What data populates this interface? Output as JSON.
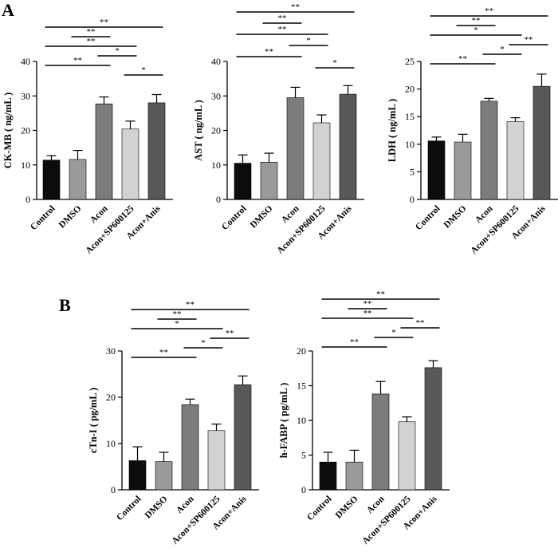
{
  "panels": [
    {
      "id": "A",
      "letter": "A"
    },
    {
      "id": "B",
      "letter": "B"
    }
  ],
  "chart_data": [
    {
      "type": "bar",
      "panel": "A",
      "ylabel": "CK-MB ( ng/mL )",
      "categories": [
        "Control",
        "DMSO",
        "Acon",
        "Acon+SP600125",
        "Acon+Anis"
      ],
      "values": [
        11.4,
        11.6,
        27.7,
        20.4,
        28.0
      ],
      "errors": [
        1.3,
        2.6,
        2.0,
        2.3,
        2.4
      ],
      "bar_colors": [
        "#0c0c0c",
        "#9a9a9a",
        "#7c7c7c",
        "#d2d2d2",
        "#595959"
      ],
      "ylim": [
        0,
        40
      ],
      "yticks": [
        0,
        10,
        20,
        30,
        40
      ],
      "significance": [
        {
          "from": 0,
          "to": 4,
          "label": "**"
        },
        {
          "from": 1,
          "to": 2,
          "label": "**"
        },
        {
          "from": 0,
          "to": 3,
          "label": "**"
        },
        {
          "from": 2,
          "to": 3,
          "label": "*"
        },
        {
          "from": 0,
          "to": 2,
          "label": "**"
        },
        {
          "from": 3,
          "to": 4,
          "label": "*"
        }
      ]
    },
    {
      "type": "bar",
      "panel": "A",
      "ylabel": "AST ( ng/mL )",
      "categories": [
        "Control",
        "DMSO",
        "Acon",
        "Acon+SP600125",
        "Acon+Anis"
      ],
      "values": [
        10.5,
        10.8,
        29.5,
        22.2,
        30.5
      ],
      "errors": [
        2.4,
        2.6,
        3.0,
        2.3,
        2.5
      ],
      "bar_colors": [
        "#0c0c0c",
        "#9a9a9a",
        "#7c7c7c",
        "#d2d2d2",
        "#595959"
      ],
      "ylim": [
        0,
        40
      ],
      "yticks": [
        0,
        10,
        20,
        30,
        40
      ],
      "significance": [
        {
          "from": 0,
          "to": 4,
          "label": "**"
        },
        {
          "from": 1,
          "to": 2,
          "label": "**"
        },
        {
          "from": 0,
          "to": 3,
          "label": "**"
        },
        {
          "from": 2,
          "to": 3,
          "label": "*"
        },
        {
          "from": 0,
          "to": 2,
          "label": "**"
        },
        {
          "from": 3,
          "to": 4,
          "label": "*"
        }
      ]
    },
    {
      "type": "bar",
      "panel": "A",
      "ylabel": "LDH ( ng/mL )",
      "categories": [
        "Control",
        "DMSO",
        "Acon",
        "Acon+SP600125",
        "Acon+Anis"
      ],
      "values": [
        10.6,
        10.4,
        17.8,
        14.1,
        20.5
      ],
      "errors": [
        0.7,
        1.4,
        0.5,
        0.7,
        2.2
      ],
      "bar_colors": [
        "#0c0c0c",
        "#9a9a9a",
        "#7c7c7c",
        "#d2d2d2",
        "#595959"
      ],
      "ylim": [
        0,
        25
      ],
      "yticks": [
        0,
        5,
        10,
        15,
        20,
        25
      ],
      "significance": [
        {
          "from": 0,
          "to": 4,
          "label": "**"
        },
        {
          "from": 1,
          "to": 2,
          "label": "**"
        },
        {
          "from": 0,
          "to": 3,
          "label": "*"
        },
        {
          "from": 3,
          "to": 4,
          "label": "**"
        },
        {
          "from": 2,
          "to": 3,
          "label": "*"
        },
        {
          "from": 0,
          "to": 2,
          "label": "**"
        }
      ]
    },
    {
      "type": "bar",
      "panel": "B",
      "ylabel": "cTn-I ( pg/mL )",
      "categories": [
        "Control",
        "DMSO",
        "Acon",
        "Acon+SP600125",
        "Acon+Anis"
      ],
      "values": [
        6.3,
        6.1,
        18.4,
        12.8,
        22.7
      ],
      "errors": [
        3.0,
        2.0,
        1.2,
        1.4,
        1.9
      ],
      "bar_colors": [
        "#0c0c0c",
        "#9a9a9a",
        "#7c7c7c",
        "#d2d2d2",
        "#595959"
      ],
      "ylim": [
        0,
        30
      ],
      "yticks": [
        0,
        10,
        20,
        30
      ],
      "significance": [
        {
          "from": 0,
          "to": 4,
          "label": "**"
        },
        {
          "from": 1,
          "to": 2,
          "label": "**"
        },
        {
          "from": 0,
          "to": 3,
          "label": "*"
        },
        {
          "from": 3,
          "to": 4,
          "label": "**"
        },
        {
          "from": 2,
          "to": 3,
          "label": "*"
        },
        {
          "from": 0,
          "to": 2,
          "label": "**"
        }
      ]
    },
    {
      "type": "bar",
      "panel": "B",
      "ylabel": "h-FABP ( pg/mL )",
      "categories": [
        "Control",
        "DMSO",
        "Acon",
        "Acon+SP600125",
        "Acon+Anis"
      ],
      "values": [
        4.0,
        4.0,
        13.8,
        9.8,
        17.6
      ],
      "errors": [
        1.4,
        1.7,
        1.8,
        0.7,
        1.0
      ],
      "bar_colors": [
        "#0c0c0c",
        "#9a9a9a",
        "#7c7c7c",
        "#d2d2d2",
        "#595959"
      ],
      "ylim": [
        0,
        20
      ],
      "yticks": [
        0,
        5,
        10,
        15,
        20
      ],
      "significance": [
        {
          "from": 0,
          "to": 4,
          "label": "**"
        },
        {
          "from": 1,
          "to": 2,
          "label": "**"
        },
        {
          "from": 0,
          "to": 3,
          "label": "**"
        },
        {
          "from": 3,
          "to": 4,
          "label": "**"
        },
        {
          "from": 2,
          "to": 3,
          "label": "*"
        },
        {
          "from": 0,
          "to": 2,
          "label": "**"
        }
      ]
    }
  ]
}
